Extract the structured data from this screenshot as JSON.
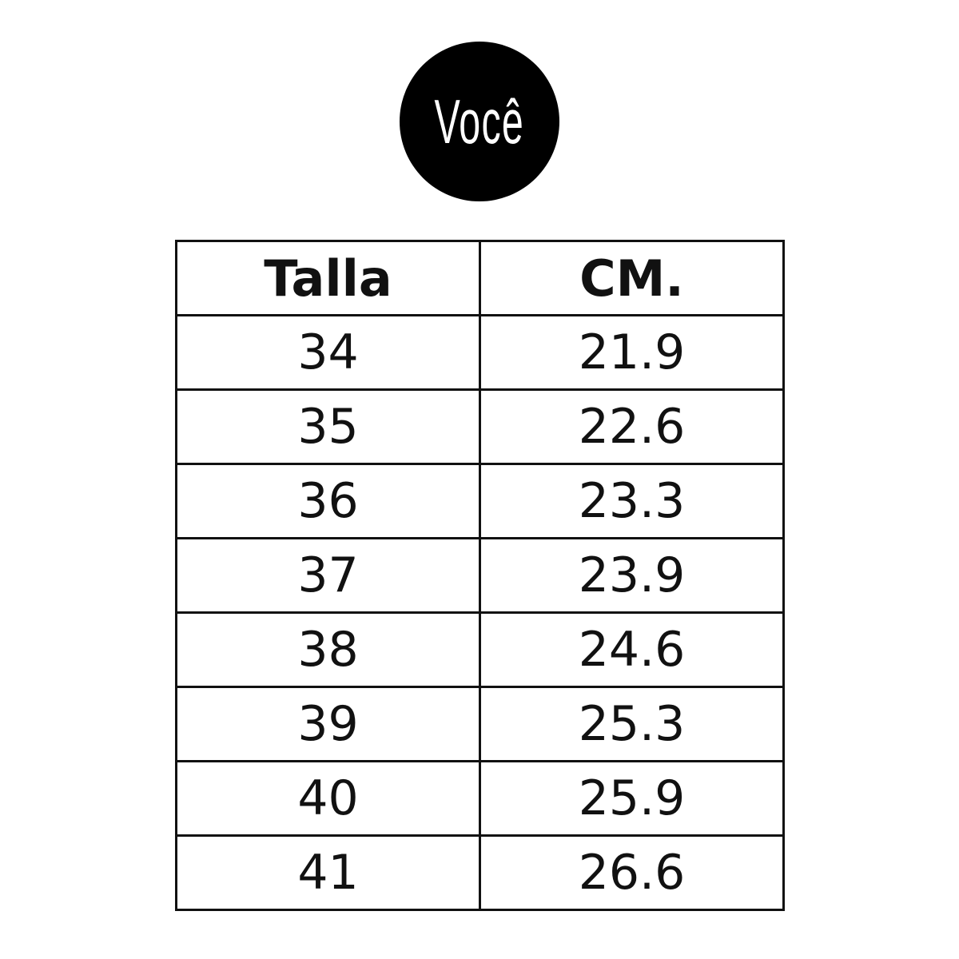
{
  "logo": {
    "text": "Você"
  },
  "table": {
    "headers": [
      "Talla",
      "CM."
    ],
    "rows": [
      [
        "34",
        "21.9"
      ],
      [
        "35",
        "22.6"
      ],
      [
        "36",
        "23.3"
      ],
      [
        "37",
        "23.9"
      ],
      [
        "38",
        "24.6"
      ],
      [
        "39",
        "25.3"
      ],
      [
        "40",
        "25.9"
      ],
      [
        "41",
        "26.6"
      ]
    ]
  }
}
